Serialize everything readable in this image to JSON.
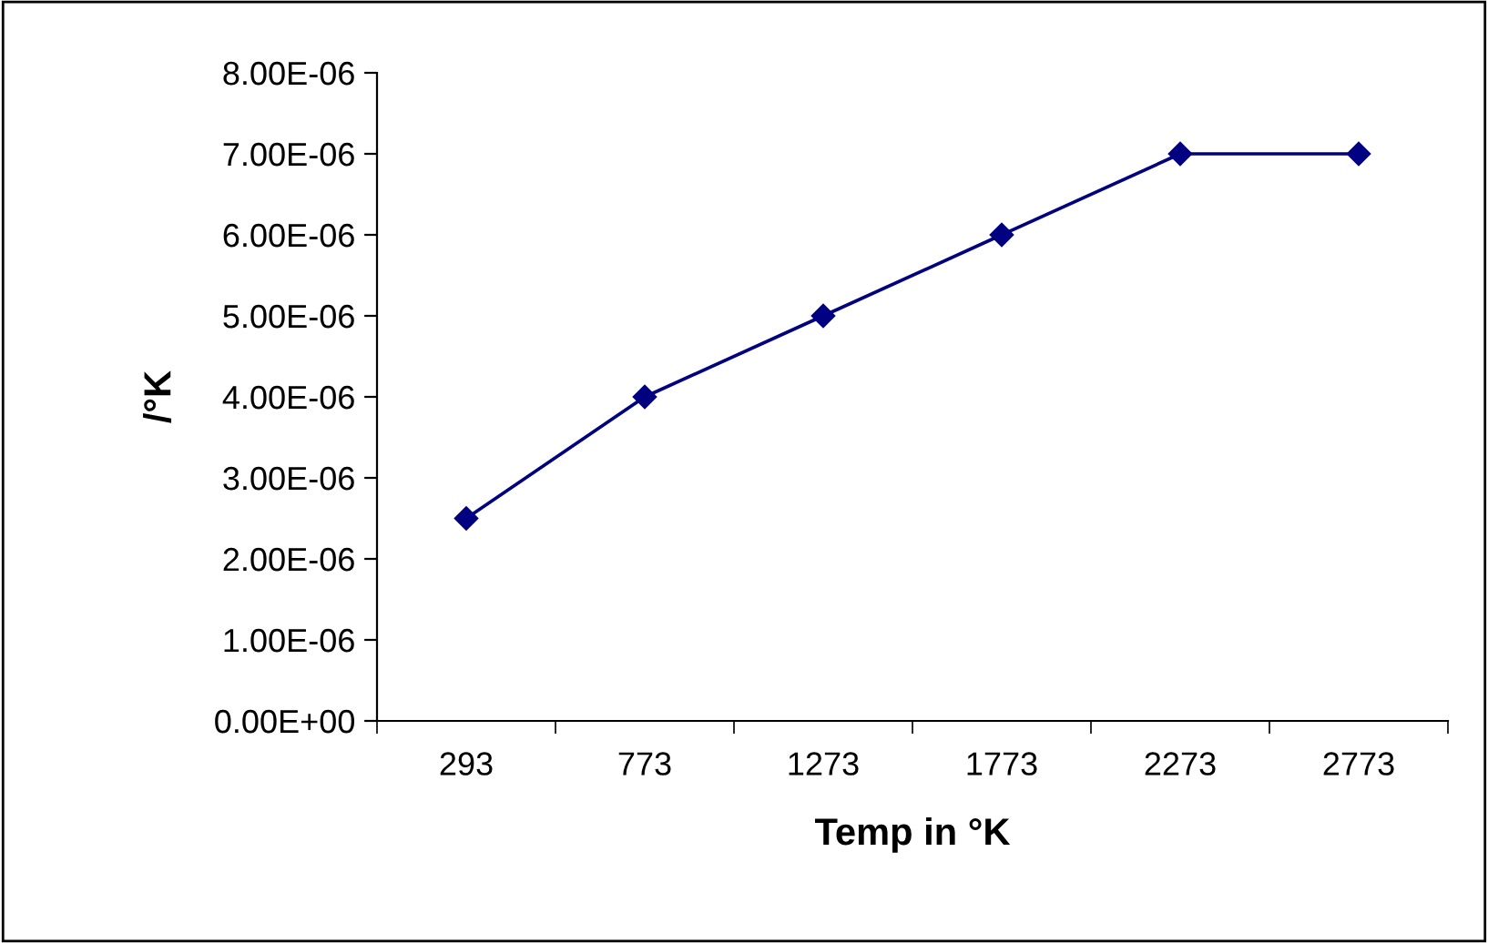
{
  "chart_data": {
    "type": "line",
    "xlabel": "Temp in °K",
    "ylabel": "/°K",
    "categories": [
      "293",
      "773",
      "1273",
      "1773",
      "2273",
      "2773"
    ],
    "series": [
      {
        "color": "#000080",
        "values": [
          2.5e-06,
          4e-06,
          5e-06,
          6e-06,
          7e-06,
          7e-06
        ]
      }
    ],
    "ylim": [
      0,
      8e-06
    ],
    "yticks": [
      {
        "value": 0,
        "label": "0.00E+00"
      },
      {
        "value": 1e-06,
        "label": "1.00E-06"
      },
      {
        "value": 2e-06,
        "label": "2.00E-06"
      },
      {
        "value": 3e-06,
        "label": "3.00E-06"
      },
      {
        "value": 4e-06,
        "label": "4.00E-06"
      },
      {
        "value": 5e-06,
        "label": "5.00E-06"
      },
      {
        "value": 6e-06,
        "label": "6.00E-06"
      },
      {
        "value": 7e-06,
        "label": "7.00E-06"
      },
      {
        "value": 8e-06,
        "label": "8.00E-06"
      }
    ],
    "marker": "diamond",
    "line_style": "solid"
  }
}
